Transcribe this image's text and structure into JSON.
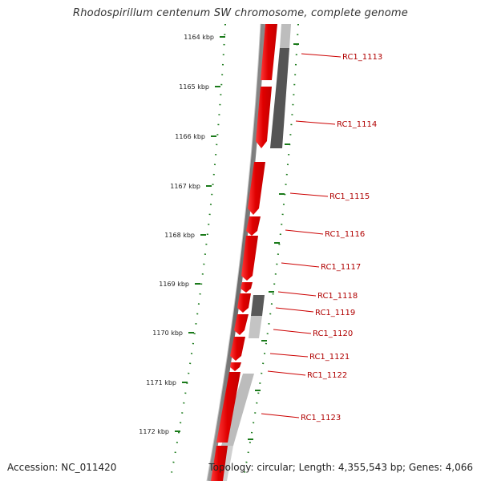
{
  "title": "Rhodospirillum centenum SW chromosome, complete genome",
  "footer": {
    "accession": "Accession: NC_011420",
    "summary": "Topology: circular; Length: 4,355,543 bp; Genes: 4,066"
  },
  "position_ticks": [
    {
      "label": "1164 kbp"
    },
    {
      "label": "1165 kbp"
    },
    {
      "label": "1166 kbp"
    },
    {
      "label": "1167 kbp"
    },
    {
      "label": "1168 kbp"
    },
    {
      "label": "1169 kbp"
    },
    {
      "label": "1170 kbp"
    },
    {
      "label": "1171 kbp"
    },
    {
      "label": "1172 kbp"
    }
  ],
  "gene_labels": [
    {
      "label": "RC1_1113"
    },
    {
      "label": "RC1_1114"
    },
    {
      "label": "RC1_1115"
    },
    {
      "label": "RC1_1116"
    },
    {
      "label": "RC1_1117"
    },
    {
      "label": "RC1_1118"
    },
    {
      "label": "RC1_1119"
    },
    {
      "label": "RC1_1120"
    },
    {
      "label": "RC1_1121"
    },
    {
      "label": "RC1_1122"
    },
    {
      "label": "RC1_1123"
    }
  ],
  "colors": {
    "cds": "#e00000",
    "cds_highlight": "#ff5a5a",
    "backbone": "#7a7a7a",
    "gc_dark": "#555555",
    "gc_light": "#b8b8b8",
    "tick": "#1a7a1a",
    "label_line": "#cc0000",
    "label_text": "#b00000"
  }
}
